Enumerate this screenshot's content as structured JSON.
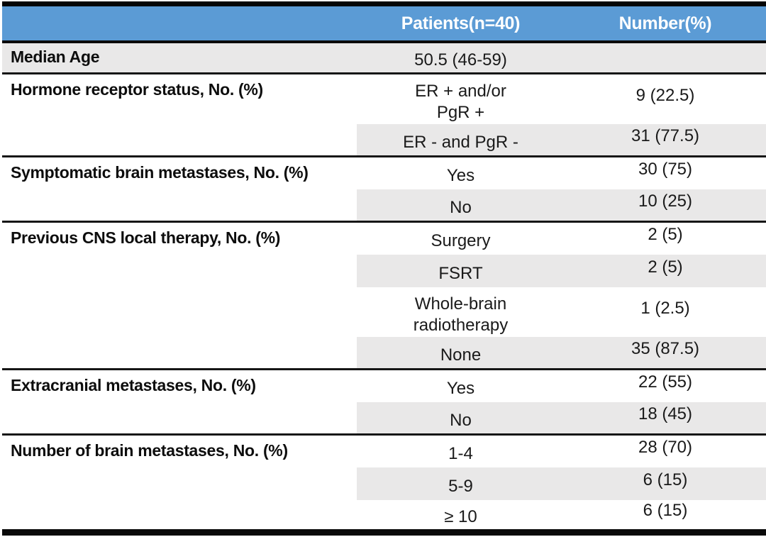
{
  "colors": {
    "header_bg": "#5b9bd5",
    "header_text": "#ffffff",
    "band_bg": "#e9e8e8",
    "rule": "#0a0a0a",
    "text": "#141414"
  },
  "header": {
    "patients": "Patients(n=40)",
    "number": "Number(%)"
  },
  "sections": [
    {
      "label": "Median Age",
      "rows": [
        {
          "patients": "50.5 (46-59)",
          "number": ""
        }
      ]
    },
    {
      "label": "Hormone receptor status, No. (%)",
      "rows": [
        {
          "patients": "ER + and/or\nPgR +",
          "number": "9 (22.5)"
        },
        {
          "patients": "ER - and PgR -",
          "number": "31 (77.5)"
        }
      ]
    },
    {
      "label": "Symptomatic brain metastases, No. (%)",
      "rows": [
        {
          "patients": "Yes",
          "number": "30 (75)"
        },
        {
          "patients": "No",
          "number": "10 (25)"
        }
      ]
    },
    {
      "label": "Previous CNS local therapy, No. (%)",
      "rows": [
        {
          "patients": "Surgery",
          "number": "2 (5)"
        },
        {
          "patients": "FSRT",
          "number": "2 (5)"
        },
        {
          "patients": "Whole-brain\nradiotherapy",
          "number": "1 (2.5)"
        },
        {
          "patients": "None",
          "number": "35 (87.5)"
        }
      ]
    },
    {
      "label": "Extracranial metastases, No. (%)",
      "rows": [
        {
          "patients": "Yes",
          "number": "22 (55)"
        },
        {
          "patients": "No",
          "number": "18 (45)"
        }
      ]
    },
    {
      "label": "Number of brain metastases, No. (%)",
      "rows": [
        {
          "patients": "1-4",
          "number": "28 (70)"
        },
        {
          "patients": "5-9",
          "number": "6 (15)"
        },
        {
          "patients": "≥ 10",
          "number": "6 (15)"
        }
      ]
    }
  ]
}
